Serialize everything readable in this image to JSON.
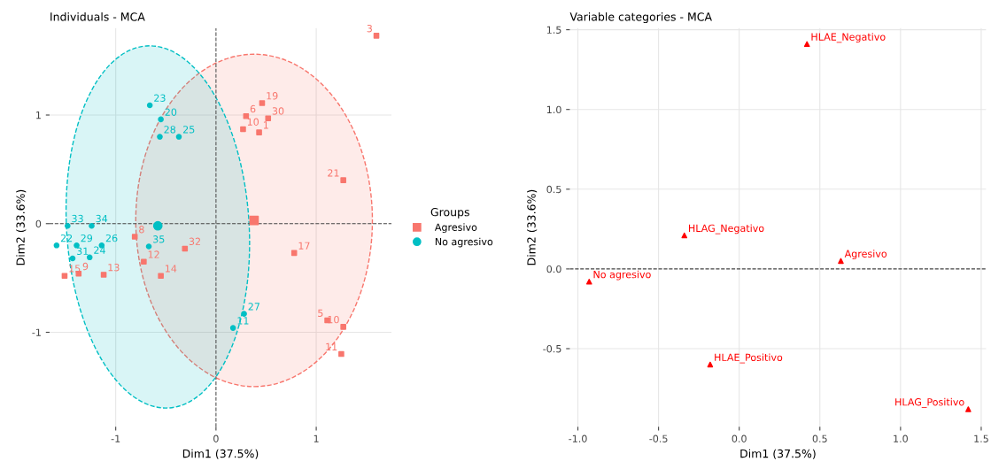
{
  "chart_data": [
    {
      "type": "scatter",
      "title": "Individuals - MCA",
      "xlabel": "Dim1 (37.5%)",
      "ylabel": "Dim2 (33.6%)",
      "xlim": [
        -1.66,
        1.75
      ],
      "ylim": [
        -1.87,
        1.8
      ],
      "xticks": [
        -1,
        0,
        1
      ],
      "yticks": [
        -1,
        0,
        1
      ],
      "grid": true,
      "legend": "right",
      "legend_title": "Groups",
      "ref_lines": [
        {
          "axis": "x",
          "value": 0,
          "line_style": "dashed",
          "color": "#555555"
        },
        {
          "axis": "y",
          "value": 0,
          "line_style": "dashed",
          "color": "#444444"
        }
      ],
      "series": [
        {
          "type": "scatter",
          "name": "Agresivo",
          "color": "#f8766d",
          "marker": "square",
          "x": [
            0.46,
            0.3,
            0.52,
            0.27,
            0.43,
            1.27,
            1.6,
            0.78,
            1.27,
            1.11,
            1.25,
            -0.81,
            -0.31,
            -0.72,
            -0.55,
            -1.12,
            -1.37,
            -1.51
          ],
          "values": [
            1.11,
            0.99,
            0.97,
            0.87,
            0.84,
            0.4,
            1.73,
            -0.27,
            -0.95,
            -0.89,
            -1.2,
            -0.12,
            -0.23,
            -0.35,
            -0.48,
            -0.47,
            -0.46,
            -0.48
          ]
        },
        {
          "type": "scatter",
          "name": "No agresivo",
          "color": "#00bfc4",
          "marker": "circle",
          "x": [
            -0.66,
            -0.55,
            -0.56,
            -0.37,
            -1.48,
            -1.24,
            -1.59,
            -1.39,
            -1.14,
            -0.67,
            -1.43,
            -1.26,
            0.28,
            0.17
          ],
          "values": [
            1.09,
            0.96,
            0.8,
            0.8,
            -0.02,
            -0.02,
            -0.2,
            -0.2,
            -0.2,
            -0.21,
            -0.32,
            -0.31,
            -0.83,
            -0.96
          ]
        },
        {
          "type": "scatter",
          "color": "#f8766d",
          "marker": "square",
          "x": [
            0.38
          ],
          "values": [
            0.03
          ]
        },
        {
          "type": "scatter",
          "color": "#00bfc4",
          "marker": "circle",
          "x": [
            -0.58
          ],
          "values": [
            -0.02
          ]
        }
      ],
      "annotations": [
        {
          "text": "19",
          "x": 0.46,
          "y": 1.11
        },
        {
          "text": "6",
          "x": 0.3,
          "y": 0.99
        },
        {
          "text": "30",
          "x": 0.52,
          "y": 0.97
        },
        {
          "text": "10",
          "x": 0.27,
          "y": 0.87
        },
        {
          "text": "1",
          "x": 0.43,
          "y": 0.84
        },
        {
          "text": "21",
          "x": 1.27,
          "y": 0.4
        },
        {
          "text": "3",
          "x": 1.6,
          "y": 1.73
        },
        {
          "text": "17",
          "x": 0.78,
          "y": -0.27
        },
        {
          "text": "10",
          "x": 1.27,
          "y": -0.95
        },
        {
          "text": "5",
          "x": 1.11,
          "y": -0.89
        },
        {
          "text": "11",
          "x": 1.25,
          "y": -1.2
        },
        {
          "text": "8",
          "x": -0.81,
          "y": -0.12
        },
        {
          "text": "32",
          "x": -0.31,
          "y": -0.23
        },
        {
          "text": "12",
          "x": -0.72,
          "y": -0.35
        },
        {
          "text": "14",
          "x": -0.55,
          "y": -0.48
        },
        {
          "text": "13",
          "x": -1.12,
          "y": -0.47
        },
        {
          "text": "9",
          "x": -1.37,
          "y": -0.46
        },
        {
          "text": "15",
          "x": -1.51,
          "y": -0.48
        },
        {
          "text": "23",
          "x": -0.66,
          "y": 1.09
        },
        {
          "text": "20",
          "x": -0.55,
          "y": 0.96
        },
        {
          "text": "28",
          "x": -0.56,
          "y": 0.8
        },
        {
          "text": "25",
          "x": -0.37,
          "y": 0.8
        },
        {
          "text": "33",
          "x": -1.48,
          "y": -0.02
        },
        {
          "text": "34",
          "x": -1.24,
          "y": -0.02
        },
        {
          "text": "22",
          "x": -1.59,
          "y": -0.2
        },
        {
          "text": "29",
          "x": -1.39,
          "y": -0.2
        },
        {
          "text": "26",
          "x": -1.14,
          "y": -0.2
        },
        {
          "text": "35",
          "x": -0.67,
          "y": -0.21
        },
        {
          "text": "31",
          "x": -1.43,
          "y": -0.32
        },
        {
          "text": "24",
          "x": -1.26,
          "y": -0.31
        },
        {
          "text": "27",
          "x": 0.28,
          "y": -0.83
        },
        {
          "text": "11",
          "x": 0.17,
          "y": -0.96
        }
      ]
    },
    {
      "type": "scatter",
      "title": "Variable categories - MCA",
      "xlabel": "Dim1 (37.5%)",
      "ylabel": "Dim2 (33.6%)",
      "xlim": [
        -1.05,
        1.53
      ],
      "ylim": [
        -0.99,
        1.51
      ],
      "xticks": [
        {
          "value": -1,
          "label": "-1.0"
        },
        -0.5,
        {
          "value": 0,
          "label": "0.0"
        },
        0.5,
        {
          "value": 1,
          "label": "1.0"
        },
        1.5
      ],
      "yticks": [
        -0.5,
        {
          "value": 0,
          "label": "0.0"
        },
        0.5,
        {
          "value": 1,
          "label": "1.0"
        },
        1.5
      ],
      "grid": true,
      "ref_lines": [
        {
          "axis": "y",
          "value": 0,
          "line_style": "dashed"
        }
      ],
      "series": [
        {
          "type": "scatter",
          "color": "#ff0000",
          "marker": "triangle",
          "x": [
            0.42,
            -0.34,
            0.63,
            -0.93,
            -0.18,
            1.42
          ],
          "values": [
            1.41,
            0.21,
            0.05,
            -0.08,
            -0.6,
            -0.88
          ]
        }
      ],
      "annotations": [
        {
          "text": "HLAE_Negativo",
          "x": 0.42,
          "y": 1.41
        },
        {
          "text": "HLAG_Negativo",
          "x": -0.34,
          "y": 0.21
        },
        {
          "text": "Agresivo",
          "x": 0.63,
          "y": 0.05
        },
        {
          "text": "No agresivo",
          "x": -0.93,
          "y": -0.08
        },
        {
          "text": "HLAE_Positivo",
          "x": -0.18,
          "y": -0.6
        },
        {
          "text": "HLAG_Positivo",
          "x": 1.42,
          "y": -0.88
        }
      ]
    }
  ]
}
